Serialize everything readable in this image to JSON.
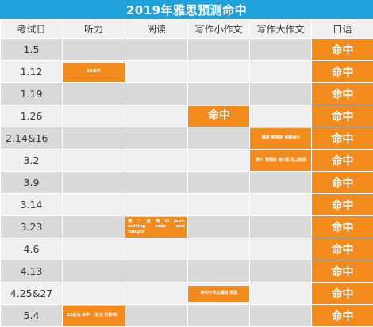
{
  "title": "2019年雅思预测命中",
  "headers": [
    "考试日",
    "听力",
    "阅读",
    "写作小作文",
    "写作大作文",
    "口语"
  ],
  "colors": {
    "header_bar": "#1fa2dc",
    "accent": "#f28a1c",
    "shade": "#d9d9d9",
    "light": "#f0f0f0"
  },
  "rows": [
    {
      "date": "1.5",
      "listening": "",
      "reading": "",
      "task1": "",
      "task2": "",
      "speaking": "命中"
    },
    {
      "date": "1.12",
      "listening": "S3命中",
      "reading": "",
      "task1": "",
      "task2": "",
      "speaking": "命中"
    },
    {
      "date": "1.19",
      "listening": "",
      "reading": "",
      "task1": "",
      "task2": "",
      "speaking": "命中"
    },
    {
      "date": "1.26",
      "listening": "",
      "reading": "",
      "task1": "命中",
      "task2": "",
      "speaking": "命中"
    },
    {
      "date": "2.14&16",
      "listening": "",
      "reading": "",
      "task1": "",
      "task2": "题型 教育类 话题命中",
      "speaking": "命中"
    },
    {
      "date": "3.2",
      "listening": "",
      "reading": "",
      "task1": "",
      "task2": "命中 预测的 第7题 员工假期",
      "speaking": "命中"
    },
    {
      "date": "3.9",
      "listening": "",
      "reading": "",
      "task1": "",
      "task2": "",
      "speaking": "命中"
    },
    {
      "date": "3.14",
      "listening": "",
      "reading": "",
      "task1": "",
      "task2": "",
      "speaking": "命中"
    },
    {
      "date": "3.23",
      "listening": "",
      "reading": "第 二 篇 命 中 leaf-cutting ants and fungus",
      "task1": "",
      "task2": "",
      "speaking": "命中"
    },
    {
      "date": "4.6",
      "listening": "",
      "reading": "",
      "task1": "",
      "task2": "",
      "speaking": "命中"
    },
    {
      "date": "4.13",
      "listening": "",
      "reading": "",
      "task1": "",
      "task2": "",
      "speaking": "命中"
    },
    {
      "date": "4.25&27",
      "listening": "",
      "reading": "",
      "task1": "命中小作文题目 类型",
      "task2": "",
      "speaking": "命中"
    },
    {
      "date": "5.4",
      "listening": "S3近似 命中 （音乐 的影响）",
      "reading": "",
      "task1": "",
      "task2": "",
      "speaking": "命中"
    }
  ]
}
